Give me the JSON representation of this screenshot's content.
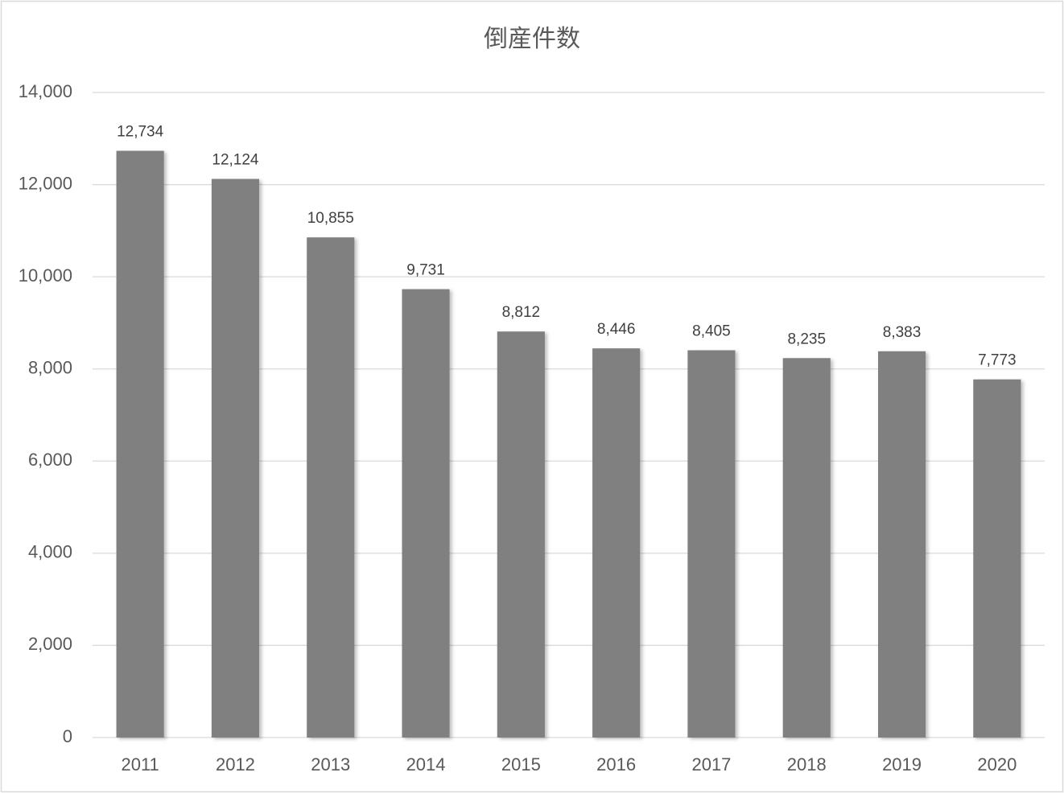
{
  "chart_data": {
    "type": "bar",
    "title": "倒産件数",
    "categories": [
      "2011",
      "2012",
      "2013",
      "2014",
      "2015",
      "2016",
      "2017",
      "2018",
      "2019",
      "2020"
    ],
    "values": [
      12734,
      12124,
      10855,
      9731,
      8812,
      8446,
      8405,
      8235,
      8383,
      7773
    ],
    "value_labels": [
      "12,734",
      "12,124",
      "10,855",
      "9,731",
      "8,812",
      "8,446",
      "8,405",
      "8,235",
      "8,383",
      "7,773"
    ],
    "color": "#808080",
    "ylim": [
      0,
      14000
    ],
    "yticks": [
      0,
      {
        "value": 2000,
        "label": "2,000"
      },
      {
        "value": 4000,
        "label": "4,000"
      },
      {
        "value": 6000,
        "label": "6,000"
      },
      {
        "value": 8000,
        "label": "8,000"
      },
      {
        "value": 10000,
        "label": "10,000"
      },
      {
        "value": 12000,
        "label": "12,000"
      },
      {
        "value": 14000,
        "label": "14,000"
      }
    ],
    "grid": true
  }
}
